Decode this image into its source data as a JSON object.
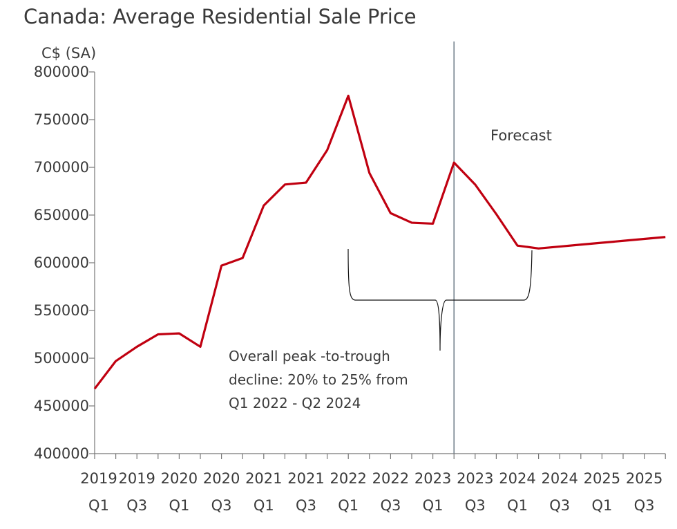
{
  "chart_data": {
    "type": "line",
    "title": "Canada: Average Residential Sale Price",
    "ylabel": "C$ (SA)",
    "xlabel": "",
    "ylim": [
      400000,
      800000
    ],
    "yticks": [
      400000,
      450000,
      500000,
      550000,
      600000,
      650000,
      700000,
      750000,
      800000
    ],
    "x": [
      "2019 Q1",
      "2019 Q2",
      "2019 Q3",
      "2019 Q4",
      "2020 Q1",
      "2020 Q2",
      "2020 Q3",
      "2020 Q4",
      "2021 Q1",
      "2021 Q2",
      "2021 Q3",
      "2021 Q4",
      "2022 Q1",
      "2022 Q2",
      "2022 Q3",
      "2022 Q4",
      "2023 Q1",
      "2023 Q2",
      "2023 Q3",
      "2023 Q4",
      "2024 Q1",
      "2024 Q2",
      "2024 Q3",
      "2024 Q4",
      "2025 Q1",
      "2025 Q2",
      "2025 Q3",
      "2025 Q4"
    ],
    "xtick_labels": [
      {
        "year": "2019",
        "q": "Q1"
      },
      {
        "year": "2019",
        "q": "Q3"
      },
      {
        "year": "2020",
        "q": "Q1"
      },
      {
        "year": "2020",
        "q": "Q3"
      },
      {
        "year": "2021",
        "q": "Q1"
      },
      {
        "year": "2021",
        "q": "Q3"
      },
      {
        "year": "2022",
        "q": "Q1"
      },
      {
        "year": "2022",
        "q": "Q3"
      },
      {
        "year": "2023",
        "q": "Q1"
      },
      {
        "year": "2023",
        "q": "Q3"
      },
      {
        "year": "2024",
        "q": "Q1"
      },
      {
        "year": "2024",
        "q": "Q3"
      },
      {
        "year": "2025",
        "q": "Q1"
      },
      {
        "year": "2025",
        "q": "Q3"
      }
    ],
    "series": [
      {
        "name": "Average Residential Sale Price",
        "color": "#c00010",
        "values": [
          468000,
          497000,
          512000,
          525000,
          526000,
          512000,
          597000,
          605000,
          660000,
          682000,
          684000,
          718000,
          775000,
          694000,
          652000,
          642000,
          641000,
          705000,
          682000,
          651000,
          618000,
          615000,
          617000,
          619000,
          621000,
          623000,
          625000,
          627000
        ]
      }
    ],
    "forecast_start": "2023 Q2",
    "annotations": {
      "forecast": "Forecast",
      "decline_lines": [
        "Overall peak -to-trough",
        "decline: 20% to 25% from",
        "Q1 2022 - Q2 2024"
      ]
    },
    "grid": false
  }
}
